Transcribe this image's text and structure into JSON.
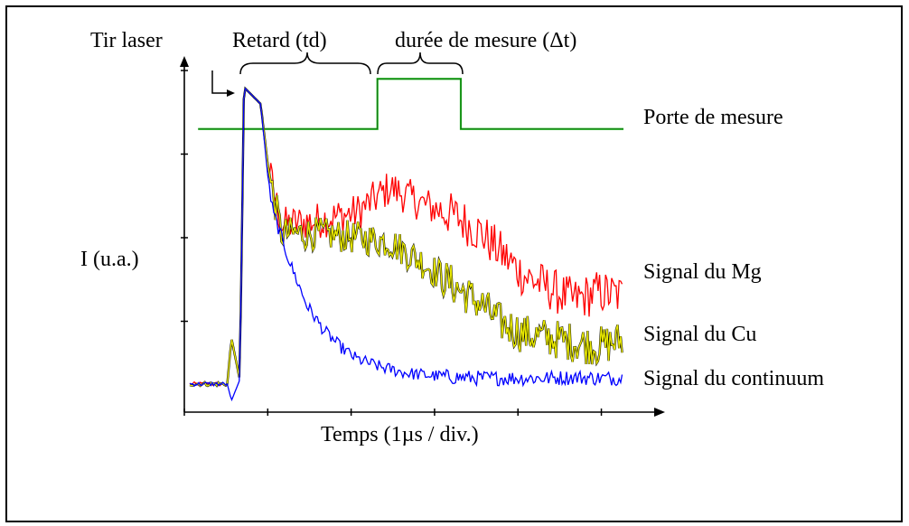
{
  "labels": {
    "tir_laser": "Tir laser",
    "retard": "Retard (td)",
    "duree": "durée de mesure (Δt)",
    "porte": "Porte de mesure",
    "ylabel": "I (u.a.)",
    "xlabel": "Temps  (1µs / div.)",
    "mg": "Signal du Mg",
    "cu": "Signal du Cu",
    "continuum": "Signal du continuum"
  },
  "colors": {
    "mg": "#ff0000",
    "cu": "#e8e800",
    "cu_edge": "#000000",
    "continuum": "#0000ff",
    "gate": "#22bb22",
    "axes": "#000000",
    "frame": "#000000"
  },
  "chart_data": {
    "type": "line",
    "xlabel": "Temps  (1µs / div.)",
    "ylabel": "I (u.a.)",
    "xlim": [
      0,
      5.2
    ],
    "ylim": [
      0,
      4
    ],
    "x_tick_step": 1,
    "grid": false,
    "gate": {
      "name": "Porte de mesure",
      "low": 3.3,
      "high": 3.9,
      "open": 2.25,
      "close": 3.25,
      "end": 5.2
    },
    "laser_shot": 0.6,
    "series": [
      {
        "name": "Signal du Mg",
        "color_key": "mg",
        "noise": 0.45,
        "x": [
          0,
          0.45,
          0.5,
          0.6,
          0.65,
          0.85,
          0.95,
          1.1,
          1.5,
          2.0,
          2.4,
          2.8,
          3.2,
          3.5,
          3.7,
          4.0,
          4.3,
          4.6,
          4.9,
          5.2
        ],
        "y": [
          0.25,
          0.25,
          0.8,
          0.3,
          3.8,
          3.6,
          2.8,
          2.15,
          2.2,
          2.3,
          2.6,
          2.4,
          2.25,
          2.05,
          1.85,
          1.55,
          1.4,
          1.25,
          1.35,
          1.3
        ]
      },
      {
        "name": "Signal du Cu",
        "color_key": "cu",
        "noise": 0.4,
        "x": [
          0,
          0.45,
          0.5,
          0.6,
          0.65,
          0.85,
          0.95,
          1.1,
          1.5,
          2.0,
          2.4,
          2.8,
          3.2,
          3.5,
          3.7,
          4.0,
          4.3,
          4.6,
          4.9,
          5.2
        ],
        "y": [
          0.25,
          0.25,
          0.8,
          0.3,
          3.8,
          3.6,
          2.75,
          2.05,
          2.05,
          2.0,
          1.95,
          1.7,
          1.4,
          1.2,
          1.0,
          0.85,
          0.8,
          0.75,
          0.7,
          0.78
        ]
      },
      {
        "name": "Signal du continuum",
        "color_key": "continuum",
        "noise": 0.15,
        "x": [
          0,
          0.45,
          0.5,
          0.6,
          0.65,
          0.85,
          0.95,
          1.0,
          1.2,
          1.4,
          1.6,
          1.8,
          2.0,
          2.3,
          2.6,
          2.9,
          3.2,
          3.5,
          4.0,
          4.3,
          4.6,
          4.9,
          5.2
        ],
        "y": [
          0.25,
          0.25,
          0.05,
          0.3,
          3.8,
          3.6,
          2.6,
          2.3,
          1.7,
          1.2,
          0.9,
          0.7,
          0.55,
          0.45,
          0.38,
          0.35,
          0.33,
          0.32,
          0.32,
          0.32,
          0.33,
          0.32,
          0.32
        ]
      }
    ]
  }
}
